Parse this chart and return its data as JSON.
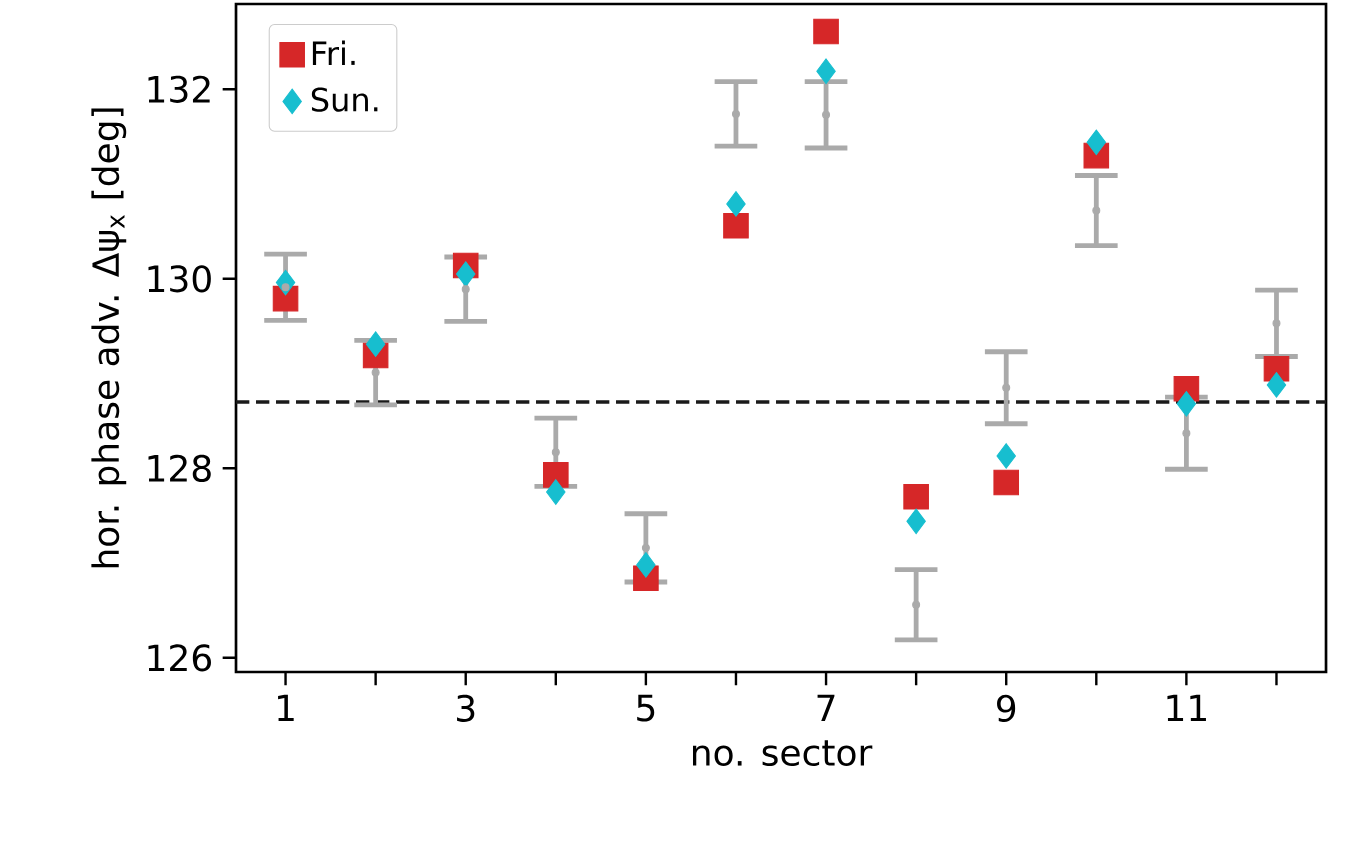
{
  "chart_data": {
    "type": "scatter",
    "xlabel": "no. sector",
    "ylabel": "hor. phase adv. Δψ$_{x}$ [deg]",
    "x": [
      1,
      2,
      3,
      4,
      5,
      6,
      7,
      8,
      9,
      10,
      11,
      12
    ],
    "series": [
      {
        "marker": "circle",
        "color": "#aaaaaa",
        "values": [
          129.91,
          129.01,
          129.89,
          128.17,
          127.16,
          131.74,
          131.73,
          126.56,
          128.85,
          130.72,
          128.37,
          129.53
        ],
        "errors": [
          0.35,
          0.34,
          0.34,
          0.36,
          0.36,
          0.34,
          0.35,
          0.37,
          0.38,
          0.37,
          0.38,
          0.35
        ]
      },
      {
        "name": "Fri.",
        "marker": "square",
        "color": "#d62728",
        "values": [
          129.79,
          129.19,
          130.14,
          127.93,
          126.84,
          130.56,
          132.61,
          127.7,
          127.85,
          131.3,
          128.84,
          129.05
        ]
      },
      {
        "name": "Sun.",
        "marker": "diamond",
        "color": "#17becf",
        "values": [
          129.96,
          129.31,
          130.05,
          127.75,
          126.98,
          130.79,
          132.19,
          127.44,
          128.13,
          131.44,
          128.68,
          128.88
        ]
      }
    ],
    "xlim": [
      0.45,
      12.55
    ],
    "ylim": [
      125.85,
      132.9
    ],
    "xticks": [
      1,
      {
        "value": 2,
        "label": null
      },
      3,
      {
        "value": 4,
        "label": null
      },
      5,
      {
        "value": 6,
        "label": null
      },
      7,
      {
        "value": 8,
        "label": null
      },
      9,
      {
        "value": 10,
        "label": null
      },
      11,
      {
        "value": 12,
        "label": null
      }
    ],
    "yticks": [
      126,
      128,
      130,
      132
    ],
    "ref_lines": [
      {
        "axis": "y",
        "value": 128.7,
        "color": "#1a1a1a",
        "line_style": "dashed"
      }
    ],
    "legend": "top left",
    "grid": false
  }
}
